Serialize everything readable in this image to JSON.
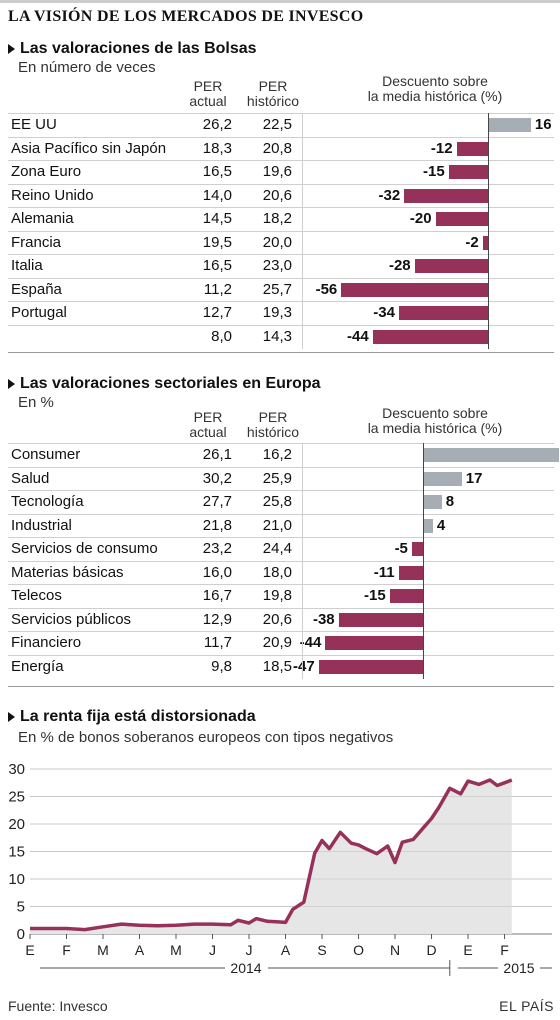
{
  "title": "LA VISIÓN DE LOS MERCADOS DE INVESCO",
  "colors": {
    "positive": "#a6adb4",
    "negative": "#96325a",
    "line": "#96325a",
    "area": "#e6e6e6"
  },
  "icon": "arrow-icon",
  "section1": {
    "title": "Las valoraciones de las Bolsas",
    "subtitle": "En número de veces",
    "col_actual": [
      "PER",
      "actual"
    ],
    "col_hist": [
      "PER",
      "histórico"
    ],
    "col_disc": [
      "Descuento sobre",
      "la media histórica (%)"
    ],
    "rows": [
      {
        "name": "EE UU",
        "actual": "26,2",
        "hist": "22,5",
        "disc": 16
      },
      {
        "name": "Asia Pacífico sin Japón",
        "actual": "18,3",
        "hist": "20,8",
        "disc": -12
      },
      {
        "name": "Zona Euro",
        "actual": "16,5",
        "hist": "19,6",
        "disc": -15
      },
      {
        "name": "Reino Unido",
        "actual": "14,0",
        "hist": "20,6",
        "disc": -32
      },
      {
        "name": "Alemania",
        "actual": "14,5",
        "hist": "18,2",
        "disc": -20
      },
      {
        "name": "Francia",
        "actual": "19,5",
        "hist": "20,0",
        "disc": -2
      },
      {
        "name": "Italia",
        "actual": "16,5",
        "hist": "23,0",
        "disc": -28
      },
      {
        "name": "España",
        "actual": "11,2",
        "hist": "25,7",
        "disc": -56
      },
      {
        "name": "Portugal",
        "actual": "12,7",
        "hist": "19,3",
        "disc": -34
      },
      {
        "name": "",
        "actual": "8,0",
        "hist": "14,3",
        "disc": -44
      }
    ]
  },
  "section2": {
    "title": "Las valoraciones sectoriales en Europa",
    "subtitle": "En %",
    "col_actual": [
      "PER",
      "actual"
    ],
    "col_hist": [
      "PER",
      "histórico"
    ],
    "col_disc": [
      "Descuento sobre",
      "la media histórica (%)"
    ],
    "rows": [
      {
        "name": "Consumer",
        "actual": "26,1",
        "hist": "16,2",
        "disc": 61
      },
      {
        "name": "Salud",
        "actual": "30,2",
        "hist": "25,9",
        "disc": 17
      },
      {
        "name": "Tecnología",
        "actual": "27,7",
        "hist": "25,8",
        "disc": 8
      },
      {
        "name": "Industrial",
        "actual": "21,8",
        "hist": "21,0",
        "disc": 4
      },
      {
        "name": "Servicios de consumo",
        "actual": "23,2",
        "hist": "24,4",
        "disc": -5
      },
      {
        "name": "Materias básicas",
        "actual": "16,0",
        "hist": "18,0",
        "disc": -11
      },
      {
        "name": "Telecos",
        "actual": "16,7",
        "hist": "19,8",
        "disc": -15
      },
      {
        "name": "Servicios públicos",
        "actual": "12,9",
        "hist": "20,6",
        "disc": -38
      },
      {
        "name": "Financiero",
        "actual": "11,7",
        "hist": "20,9",
        "disc": -44
      },
      {
        "name": "Energía",
        "actual": "9,8",
        "hist": "18,5",
        "disc": -47
      }
    ]
  },
  "section3": {
    "title": "La renta fija está distorsionada",
    "subtitle": "En % de bonos soberanos europeos con tipos negativos",
    "years": [
      "2014",
      "2015"
    ]
  },
  "chart_data": {
    "type": "area",
    "y_ticks": [
      0,
      5,
      10,
      15,
      20,
      25,
      30
    ],
    "ylim": [
      0,
      30
    ],
    "month_labels": [
      "E",
      "F",
      "M",
      "A",
      "M",
      "J",
      "J",
      "A",
      "S",
      "O",
      "N",
      "D",
      "E",
      "F"
    ],
    "x": [
      0,
      0.5,
      1,
      1.5,
      2,
      2.5,
      3,
      3.5,
      4,
      4.5,
      5,
      5.5,
      5.7,
      6,
      6.2,
      6.5,
      6.8,
      7,
      7.2,
      7.5,
      7.8,
      8,
      8.2,
      8.5,
      8.8,
      9,
      9.2,
      9.5,
      9.8,
      10,
      10.2,
      10.5,
      10.8,
      11,
      11.2,
      11.5,
      11.8,
      12,
      12.3,
      12.6,
      12.8,
      13,
      13.2
    ],
    "y": [
      1.0,
      1.0,
      1.0,
      0.8,
      1.3,
      1.8,
      1.6,
      1.5,
      1.6,
      1.8,
      1.8,
      1.7,
      2.5,
      2.0,
      2.8,
      2.3,
      2.2,
      2.1,
      4.5,
      5.8,
      14.7,
      17.0,
      15.5,
      18.5,
      16.5,
      16.2,
      15.5,
      14.6,
      16.0,
      13.0,
      16.7,
      17.2,
      19.5,
      21.0,
      23.0,
      26.5,
      25.5,
      27.8,
      27.2,
      28.0,
      27.0,
      27.5,
      28.0
    ],
    "xlabel": "",
    "ylabel": ""
  },
  "footer": {
    "source": "Fuente: Invesco",
    "brand": "EL PAÍS"
  }
}
